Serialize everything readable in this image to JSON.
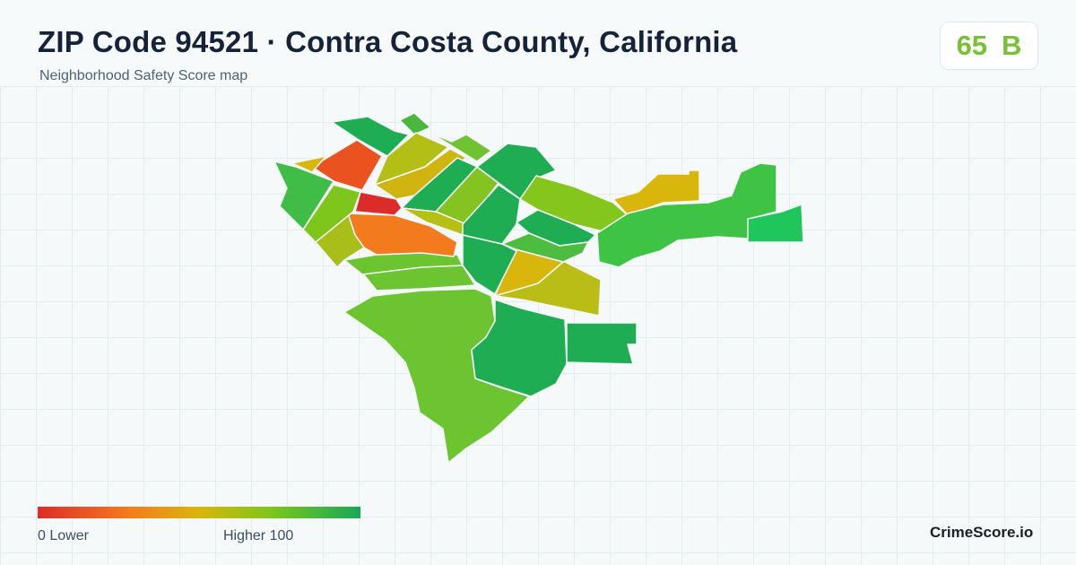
{
  "header": {
    "title": "ZIP Code 94521 · Contra Costa County, California",
    "subtitle": "Neighborhood Safety Score map"
  },
  "score": {
    "value": "65",
    "grade": "B",
    "color": "#78c134"
  },
  "legend": {
    "min_label": "0  Lower",
    "max_label": "Higher  100",
    "gradient_colors": [
      "#dc2c2a",
      "#f47a1e",
      "#d8b60c",
      "#7ec61c",
      "#17a858"
    ]
  },
  "brand": {
    "name": "CrimeScore.io"
  },
  "palette": {
    "background": "#f5f9fa",
    "grid_line": "#e2ecef",
    "region_border": "#f4f7f8"
  }
}
